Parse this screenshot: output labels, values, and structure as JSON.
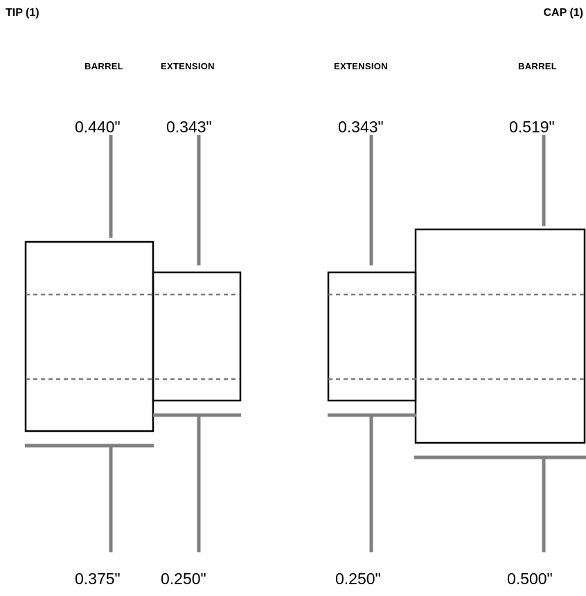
{
  "left": {
    "title": "TIP (1)",
    "barrel": {
      "label": "BARREL",
      "outer": "0.440\"",
      "inner": "0.375\""
    },
    "extension": {
      "label": "EXTENSION",
      "outer": "0.343\"",
      "inner": "0.250\""
    }
  },
  "right": {
    "title": "CAP (1)",
    "extension": {
      "label": "EXTENSION",
      "outer": "0.343\"",
      "inner": "0.250\""
    },
    "barrel": {
      "label": "BARREL",
      "outer": "0.519\"",
      "inner": "0.500\""
    }
  },
  "colors": {
    "dimension_line": "#808080",
    "hidden_line": "#7a7a7a",
    "outline": "#000000"
  }
}
